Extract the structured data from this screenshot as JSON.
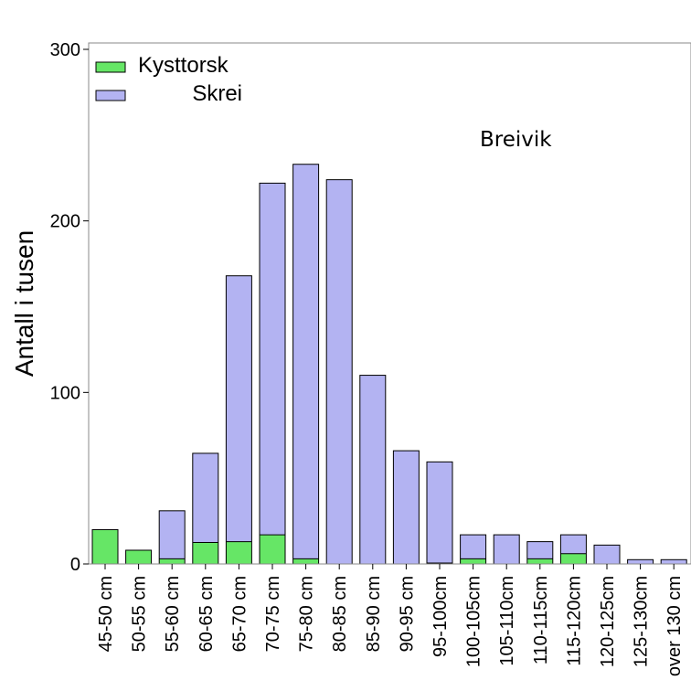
{
  "chart_data": {
    "type": "bar",
    "stacked": true,
    "title": "",
    "annotation": "Breivik",
    "xlabel": "",
    "ylabel": "Antall i tusen",
    "ylim": [
      0,
      300
    ],
    "yticks": [
      0,
      100,
      200,
      300
    ],
    "categories": [
      "45-50 cm",
      "50-55 cm",
      "55-60 cm",
      "60-65 cm",
      "65-70 cm",
      "70-75 cm",
      "75-80 cm",
      "80-85 cm",
      "85-90 cm",
      "90-95 cm",
      "95-100cm",
      "100-105cm",
      "105-110cm",
      "110-115cm",
      "115-120cm",
      "120-125cm",
      "125-130cm",
      "over 130 cm"
    ],
    "series": [
      {
        "name": "Kysttorsk",
        "color": "#66e666",
        "values": [
          20,
          8,
          3,
          12.5,
          13,
          17,
          3,
          0,
          0,
          0,
          0.5,
          3,
          0,
          3,
          6,
          0,
          0,
          0
        ]
      },
      {
        "name": "Skrei",
        "color": "#b3b3f2",
        "values": [
          0,
          0,
          28,
          52,
          155,
          205,
          230,
          224,
          110,
          66,
          59,
          14,
          17,
          10,
          11,
          11,
          2.5,
          2.5
        ]
      }
    ],
    "legend": "top-left",
    "grid": false
  }
}
